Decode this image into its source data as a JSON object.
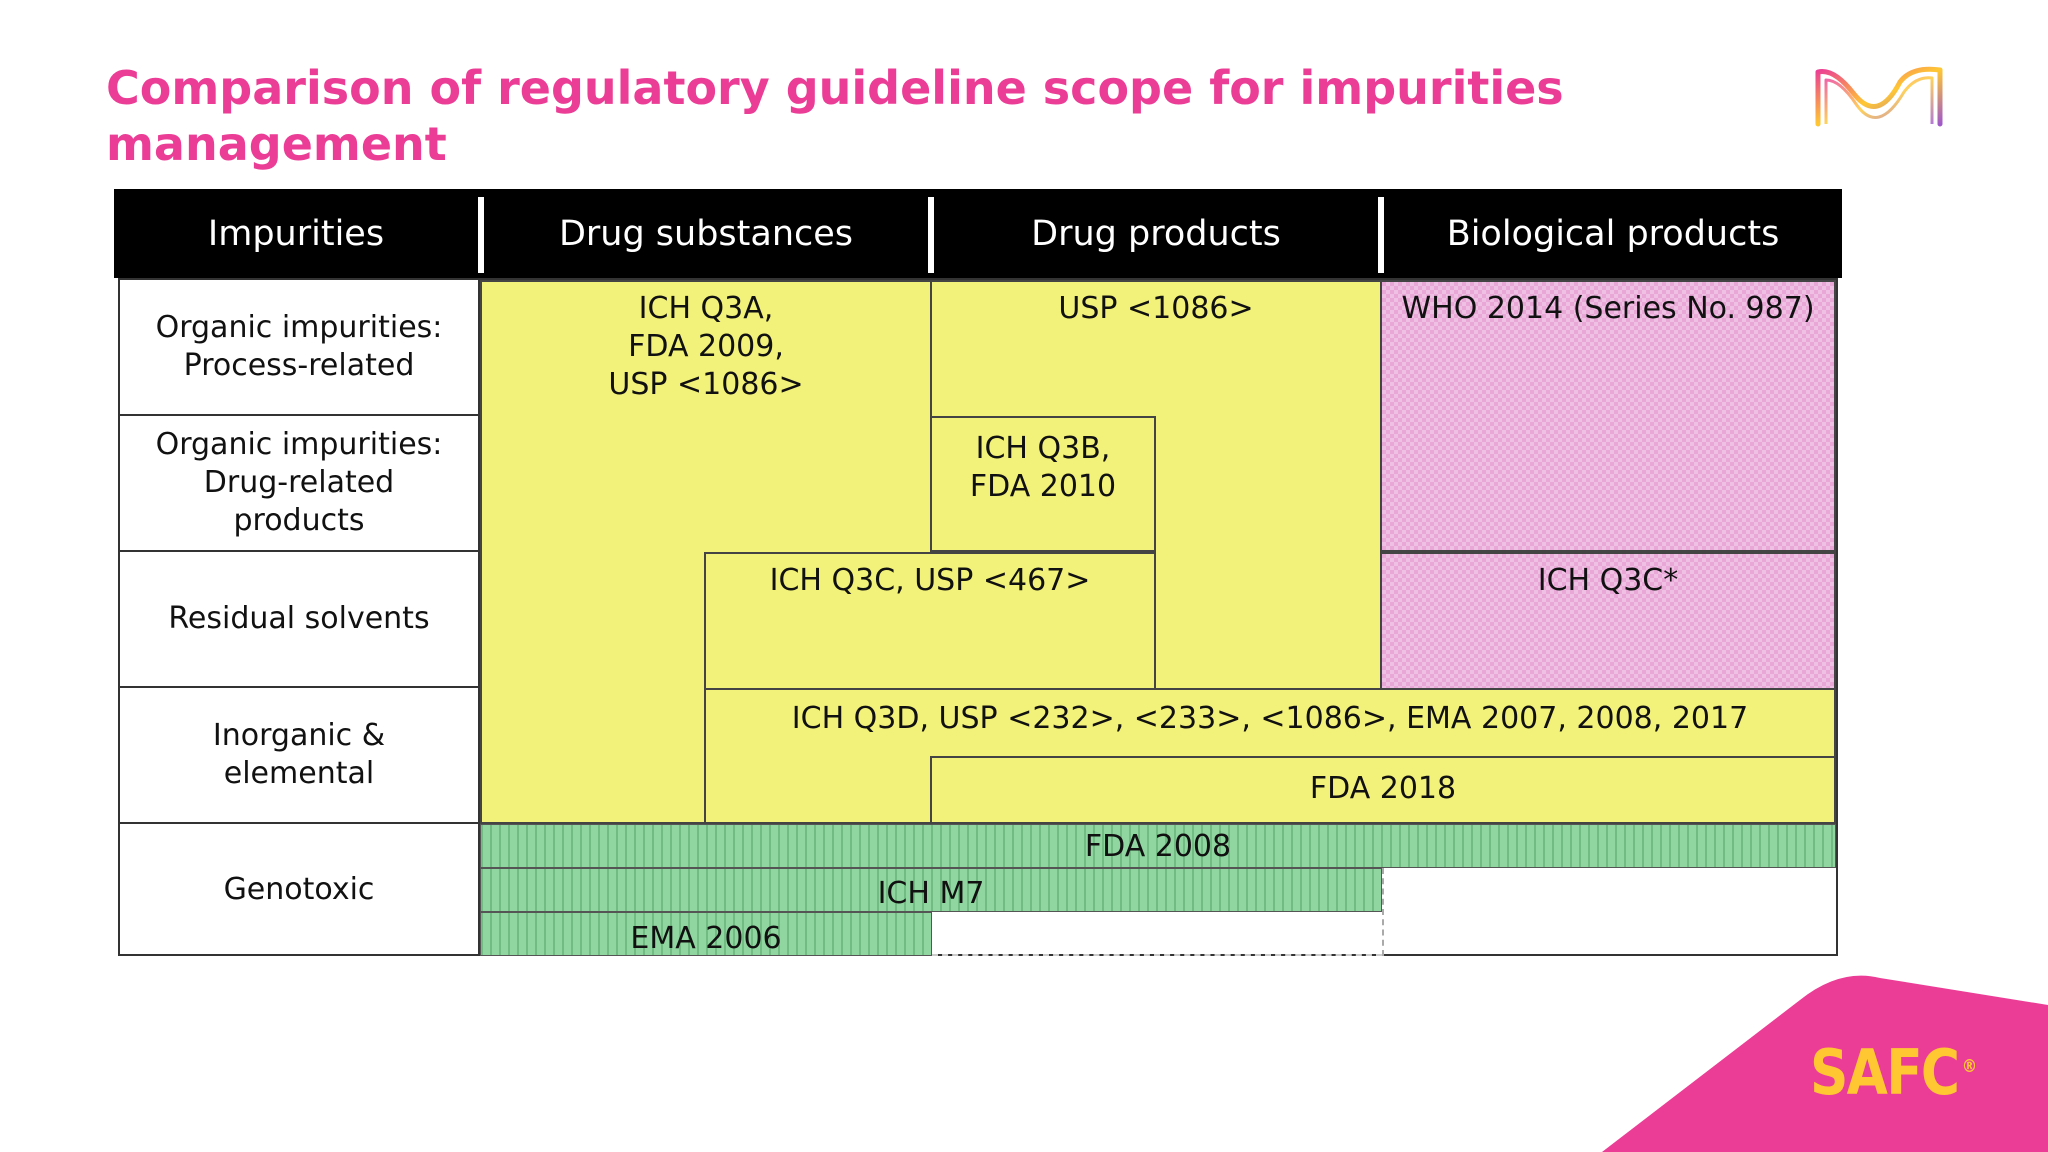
{
  "slide": {
    "title": "Comparison of regulatory guideline scope for impurities management",
    "brand": "SAFC",
    "brand_mark": "®",
    "colors": {
      "accent": "#eb3c96",
      "brand_text": "#ffc832",
      "yellow": "#f2f27a",
      "pink": "#e9a7d8",
      "green": "#8fd6a0"
    }
  },
  "table": {
    "headers": [
      "Impurities",
      "Drug substances",
      "Drug products",
      "Biological products"
    ],
    "rows": [
      "Organic impurities:\nProcess-related",
      "Organic impurities:\nDrug-related\nproducts",
      "Residual solvents",
      "Inorganic &\nelemental",
      "Genotoxic"
    ],
    "guidelines": {
      "ich_q3a": "ICH Q3A,\nFDA 2009,\nUSP <1086>",
      "usp_1086": "USP <1086>",
      "who_2014": "WHO 2014 (Series No. 987)",
      "ich_q3b": "ICH Q3B,\nFDA 2010",
      "ich_q3c": "ICH Q3C, USP <467>",
      "ich_q3c_bio": "ICH Q3C*",
      "ich_q3d": "ICH Q3D, USP <232>, <233>, <1086>, EMA 2007, 2008, 2017",
      "fda_2018": "FDA 2018",
      "fda_2008": "FDA 2008",
      "ich_m7": "ICH M7",
      "ema_2006": "EMA 2006"
    }
  }
}
